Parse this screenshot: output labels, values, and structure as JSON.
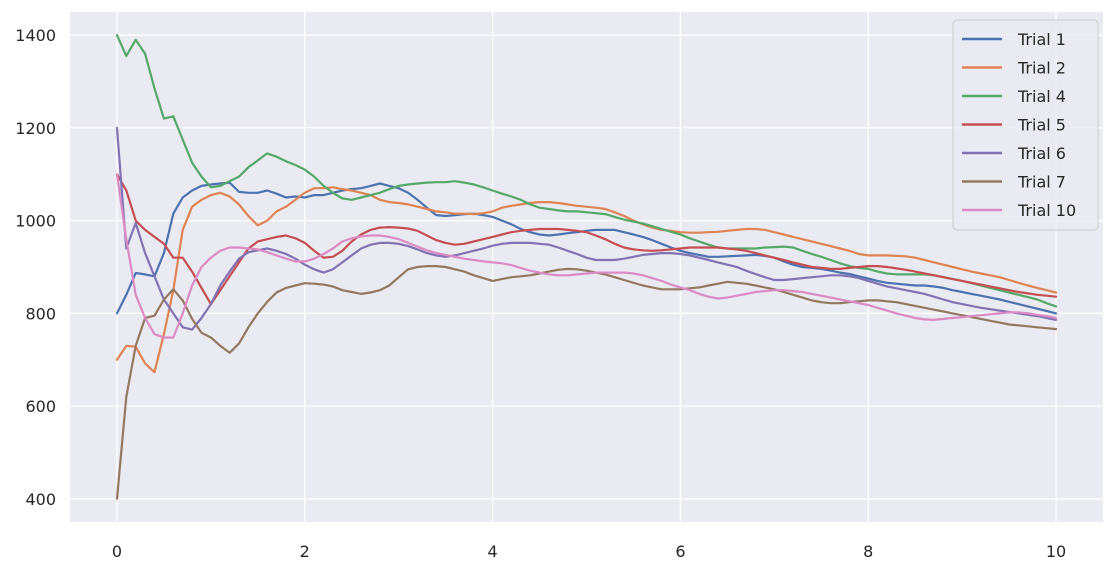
{
  "chart_data": {
    "type": "line",
    "title": "",
    "xlabel": "",
    "ylabel": "",
    "xlim": [
      -0.5,
      10.5
    ],
    "ylim": [
      350,
      1450
    ],
    "xticks": [
      0,
      2,
      4,
      6,
      8,
      10
    ],
    "xtick_labels": [
      "0",
      "2",
      "4",
      "6",
      "8",
      "10"
    ],
    "yticks": [
      400,
      600,
      800,
      1000,
      1200,
      1400
    ],
    "ytick_labels": [
      "400",
      "600",
      "800",
      "1000",
      "1200",
      "1400"
    ],
    "grid": true,
    "legend_position": "top-right",
    "background": "#eaeaf2",
    "grid_color": "#ffffff",
    "x": [
      0,
      0.1,
      0.2,
      0.3,
      0.4,
      0.5,
      0.6,
      0.7,
      0.8,
      0.9,
      1.0,
      1.1,
      1.2,
      1.3,
      1.4,
      1.5,
      1.6,
      1.7,
      1.8,
      1.9,
      2.0,
      2.1,
      2.2,
      2.3,
      2.4,
      2.5,
      2.6,
      2.7,
      2.8,
      2.9,
      3.0,
      3.1,
      3.2,
      3.3,
      3.4,
      3.5,
      3.6,
      3.7,
      3.8,
      3.9,
      4.0,
      4.1,
      4.2,
      4.3,
      4.4,
      4.5,
      4.6,
      4.7,
      4.8,
      4.9,
      5.0,
      5.1,
      5.2,
      5.3,
      5.4,
      5.5,
      5.6,
      5.7,
      5.8,
      5.9,
      6.0,
      6.1,
      6.2,
      6.3,
      6.4,
      6.5,
      6.6,
      6.7,
      6.8,
      6.9,
      7.0,
      7.1,
      7.2,
      7.3,
      7.4,
      7.5,
      7.6,
      7.7,
      7.8,
      7.9,
      8.0,
      8.1,
      8.2,
      8.3,
      8.4,
      8.5,
      8.6,
      8.7,
      8.8,
      8.9,
      9.0,
      9.1,
      9.2,
      9.3,
      9.4,
      9.5,
      9.6,
      9.7,
      9.8,
      9.9,
      10.0
    ],
    "series": [
      {
        "name": "Trial 1",
        "color": "#4c72b0",
        "values": [
          800,
          840,
          887,
          884,
          880,
          930,
          1015,
          1050,
          1065,
          1075,
          1078,
          1080,
          1082,
          1062,
          1060,
          1060,
          1065,
          1058,
          1050,
          1052,
          1050,
          1055,
          1055,
          1060,
          1065,
          1068,
          1070,
          1075,
          1080,
          1075,
          1070,
          1060,
          1045,
          1028,
          1012,
          1010,
          1012,
          1014,
          1015,
          1012,
          1008,
          1000,
          992,
          982,
          975,
          970,
          968,
          970,
          973,
          975,
          978,
          980,
          980,
          980,
          975,
          970,
          965,
          958,
          950,
          942,
          935,
          930,
          926,
          922,
          922,
          923,
          924,
          925,
          926,
          924,
          920,
          912,
          905,
          900,
          898,
          896,
          892,
          888,
          885,
          880,
          875,
          870,
          866,
          864,
          862,
          860,
          860,
          858,
          855,
          850,
          846,
          842,
          838,
          834,
          830,
          825,
          820,
          815,
          810,
          805,
          800
        ]
      },
      {
        "name": "Trial 2",
        "color": "#dd8452",
        "values": [
          700,
          730,
          728,
          692,
          673,
          755,
          850,
          980,
          1030,
          1045,
          1055,
          1060,
          1052,
          1035,
          1010,
          990,
          1000,
          1020,
          1030,
          1045,
          1060,
          1070,
          1070,
          1072,
          1068,
          1065,
          1060,
          1055,
          1045,
          1040,
          1038,
          1035,
          1030,
          1025,
          1020,
          1018,
          1015,
          1015,
          1014,
          1016,
          1020,
          1028,
          1032,
          1035,
          1038,
          1040,
          1040,
          1038,
          1035,
          1032,
          1030,
          1028,
          1025,
          1018,
          1010,
          1000,
          992,
          985,
          980,
          978,
          975,
          974,
          974,
          975,
          976,
          978,
          980,
          982,
          982,
          980,
          975,
          970,
          965,
          960,
          955,
          950,
          945,
          940,
          935,
          928,
          925,
          925,
          925,
          924,
          923,
          920,
          915,
          910,
          905,
          900,
          895,
          890,
          886,
          882,
          878,
          872,
          866,
          860,
          855,
          850,
          845
        ]
      },
      {
        "name": "Trial 4",
        "color": "#55a868",
        "values": [
          1400,
          1355,
          1390,
          1360,
          1285,
          1220,
          1225,
          1175,
          1125,
          1095,
          1072,
          1075,
          1085,
          1095,
          1115,
          1130,
          1145,
          1138,
          1128,
          1120,
          1110,
          1095,
          1075,
          1060,
          1048,
          1045,
          1050,
          1055,
          1060,
          1068,
          1075,
          1078,
          1080,
          1082,
          1083,
          1083,
          1085,
          1082,
          1078,
          1072,
          1065,
          1058,
          1052,
          1045,
          1035,
          1028,
          1025,
          1022,
          1020,
          1020,
          1018,
          1016,
          1014,
          1008,
          1002,
          998,
          994,
          988,
          982,
          976,
          970,
          962,
          955,
          948,
          942,
          940,
          940,
          940,
          940,
          942,
          943,
          944,
          942,
          935,
          928,
          922,
          915,
          908,
          902,
          898,
          896,
          890,
          886,
          884,
          884,
          884,
          884,
          882,
          878,
          874,
          870,
          865,
          860,
          855,
          850,
          845,
          840,
          835,
          830,
          822,
          815
        ]
      },
      {
        "name": "Trial 5",
        "color": "#c44e52",
        "values": [
          1100,
          1065,
          1000,
          980,
          965,
          950,
          920,
          920,
          890,
          855,
          820,
          850,
          880,
          910,
          940,
          955,
          960,
          965,
          968,
          962,
          952,
          935,
          920,
          922,
          935,
          955,
          970,
          980,
          985,
          986,
          985,
          983,
          978,
          968,
          958,
          952,
          948,
          950,
          955,
          960,
          965,
          970,
          975,
          978,
          980,
          982,
          982,
          982,
          980,
          978,
          975,
          968,
          960,
          950,
          942,
          938,
          936,
          935,
          936,
          938,
          940,
          942,
          942,
          942,
          942,
          940,
          938,
          935,
          930,
          925,
          920,
          915,
          910,
          905,
          900,
          898,
          896,
          896,
          898,
          900,
          902,
          902,
          900,
          897,
          894,
          890,
          886,
          882,
          878,
          874,
          870,
          866,
          862,
          858,
          854,
          850,
          846,
          843,
          840,
          838,
          836
        ]
      },
      {
        "name": "Trial 6",
        "color": "#8172b3",
        "values": [
          1200,
          940,
          995,
          930,
          880,
          830,
          800,
          770,
          765,
          790,
          820,
          860,
          890,
          918,
          932,
          936,
          940,
          935,
          928,
          918,
          905,
          895,
          888,
          895,
          910,
          925,
          940,
          948,
          952,
          952,
          950,
          945,
          938,
          930,
          925,
          922,
          925,
          930,
          935,
          940,
          946,
          950,
          952,
          952,
          952,
          950,
          948,
          942,
          935,
          928,
          920,
          915,
          915,
          915,
          918,
          922,
          926,
          928,
          930,
          930,
          928,
          925,
          920,
          915,
          910,
          905,
          900,
          892,
          885,
          878,
          872,
          872,
          874,
          876,
          878,
          880,
          882,
          882,
          880,
          876,
          870,
          864,
          858,
          854,
          850,
          846,
          842,
          836,
          830,
          824,
          820,
          816,
          812,
          809,
          806,
          803,
          800,
          797,
          794,
          790,
          786
        ]
      },
      {
        "name": "Trial 7",
        "color": "#937860",
        "values": [
          400,
          620,
          730,
          790,
          795,
          830,
          852,
          828,
          788,
          758,
          748,
          730,
          715,
          735,
          770,
          800,
          825,
          845,
          855,
          860,
          865,
          864,
          862,
          858,
          850,
          846,
          842,
          845,
          850,
          860,
          878,
          895,
          900,
          902,
          902,
          900,
          895,
          890,
          882,
          876,
          870,
          874,
          878,
          880,
          882,
          886,
          890,
          894,
          896,
          895,
          892,
          888,
          884,
          878,
          872,
          866,
          860,
          856,
          852,
          852,
          852,
          854,
          856,
          860,
          864,
          868,
          866,
          864,
          860,
          856,
          852,
          846,
          840,
          834,
          828,
          824,
          822,
          822,
          824,
          826,
          828,
          828,
          826,
          824,
          820,
          816,
          812,
          808,
          804,
          800,
          796,
          792,
          788,
          784,
          780,
          776,
          774,
          772,
          770,
          768,
          766
        ]
      },
      {
        "name": "Trial 10",
        "color": "#da8bc3",
        "values": [
          1100,
          960,
          840,
          790,
          755,
          748,
          748,
          800,
          860,
          900,
          920,
          935,
          942,
          942,
          940,
          938,
          932,
          925,
          918,
          912,
          912,
          918,
          928,
          940,
          955,
          962,
          966,
          968,
          968,
          965,
          960,
          952,
          944,
          936,
          930,
          926,
          922,
          918,
          915,
          912,
          910,
          908,
          904,
          898,
          892,
          888,
          884,
          882,
          882,
          884,
          886,
          888,
          888,
          888,
          888,
          886,
          882,
          876,
          870,
          862,
          856,
          850,
          842,
          836,
          832,
          834,
          838,
          842,
          846,
          848,
          850,
          850,
          848,
          846,
          842,
          838,
          834,
          830,
          826,
          822,
          818,
          812,
          806,
          800,
          795,
          790,
          787,
          786,
          788,
          790,
          792,
          794,
          796,
          798,
          800,
          802,
          802,
          800,
          797,
          794,
          790
        ]
      }
    ]
  }
}
